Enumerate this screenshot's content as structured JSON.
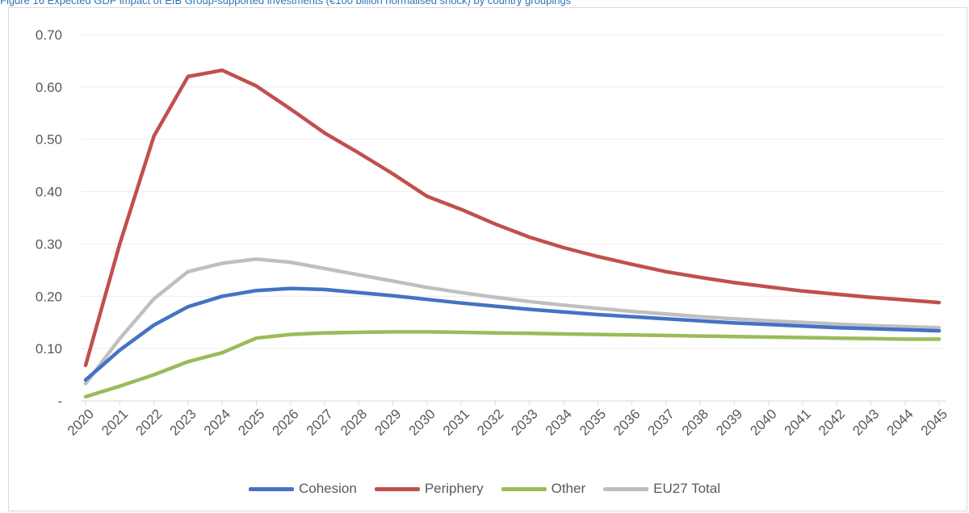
{
  "caption": "Figure 16 Expected GDP impact of EIB Group-supported investments (€100 billion normalised shock) by country groupings",
  "chart_data": {
    "type": "line",
    "title": "",
    "xlabel": "",
    "ylabel": "",
    "x": [
      "2020",
      "2021",
      "2022",
      "2023",
      "2024",
      "2025",
      "2026",
      "2027",
      "2028",
      "2029",
      "2030",
      "2031",
      "2032",
      "2033",
      "2034",
      "2035",
      "2036",
      "2037",
      "2038",
      "2039",
      "2040",
      "2041",
      "2042",
      "2043",
      "2044",
      "2045"
    ],
    "ylim": [
      0,
      0.7
    ],
    "yticks": [
      {
        "value": 0,
        "label": "-"
      },
      {
        "value": 0.1,
        "label": "0.10"
      },
      {
        "value": 0.2,
        "label": "0.20"
      },
      {
        "value": 0.3,
        "label": "0.30"
      },
      {
        "value": 0.4,
        "label": "0.40"
      },
      {
        "value": 0.5,
        "label": "0.50"
      },
      {
        "value": 0.6,
        "label": "0.60"
      },
      {
        "value": 0.7,
        "label": "0.70"
      }
    ],
    "grid": true,
    "legend_position": "bottom",
    "series": [
      {
        "name": "Cohesion",
        "color": "#4472C4",
        "values": [
          0.04,
          0.097,
          0.145,
          0.18,
          0.2,
          0.211,
          0.215,
          0.213,
          0.207,
          0.201,
          0.194,
          0.187,
          0.181,
          0.175,
          0.17,
          0.165,
          0.161,
          0.157,
          0.153,
          0.149,
          0.146,
          0.143,
          0.14,
          0.138,
          0.136,
          0.134
        ]
      },
      {
        "name": "Periphery",
        "color": "#C0504D",
        "values": [
          0.068,
          0.3,
          0.506,
          0.62,
          0.632,
          0.602,
          0.558,
          0.512,
          0.474,
          0.434,
          0.391,
          0.366,
          0.338,
          0.313,
          0.293,
          0.276,
          0.261,
          0.247,
          0.236,
          0.226,
          0.218,
          0.21,
          0.204,
          0.198,
          0.193,
          0.188
        ]
      },
      {
        "name": "Other",
        "color": "#9BBB59",
        "values": [
          0.008,
          0.028,
          0.05,
          0.075,
          0.092,
          0.12,
          0.127,
          0.13,
          0.131,
          0.132,
          0.132,
          0.131,
          0.13,
          0.129,
          0.128,
          0.127,
          0.126,
          0.125,
          0.124,
          0.123,
          0.122,
          0.121,
          0.12,
          0.119,
          0.118,
          0.118
        ]
      },
      {
        "name": "EU27 Total",
        "color": "#BFBFBF",
        "values": [
          0.033,
          0.119,
          0.195,
          0.247,
          0.263,
          0.271,
          0.265,
          0.253,
          0.241,
          0.229,
          0.217,
          0.207,
          0.198,
          0.19,
          0.183,
          0.177,
          0.171,
          0.166,
          0.161,
          0.157,
          0.153,
          0.15,
          0.147,
          0.144,
          0.142,
          0.14
        ]
      }
    ]
  }
}
